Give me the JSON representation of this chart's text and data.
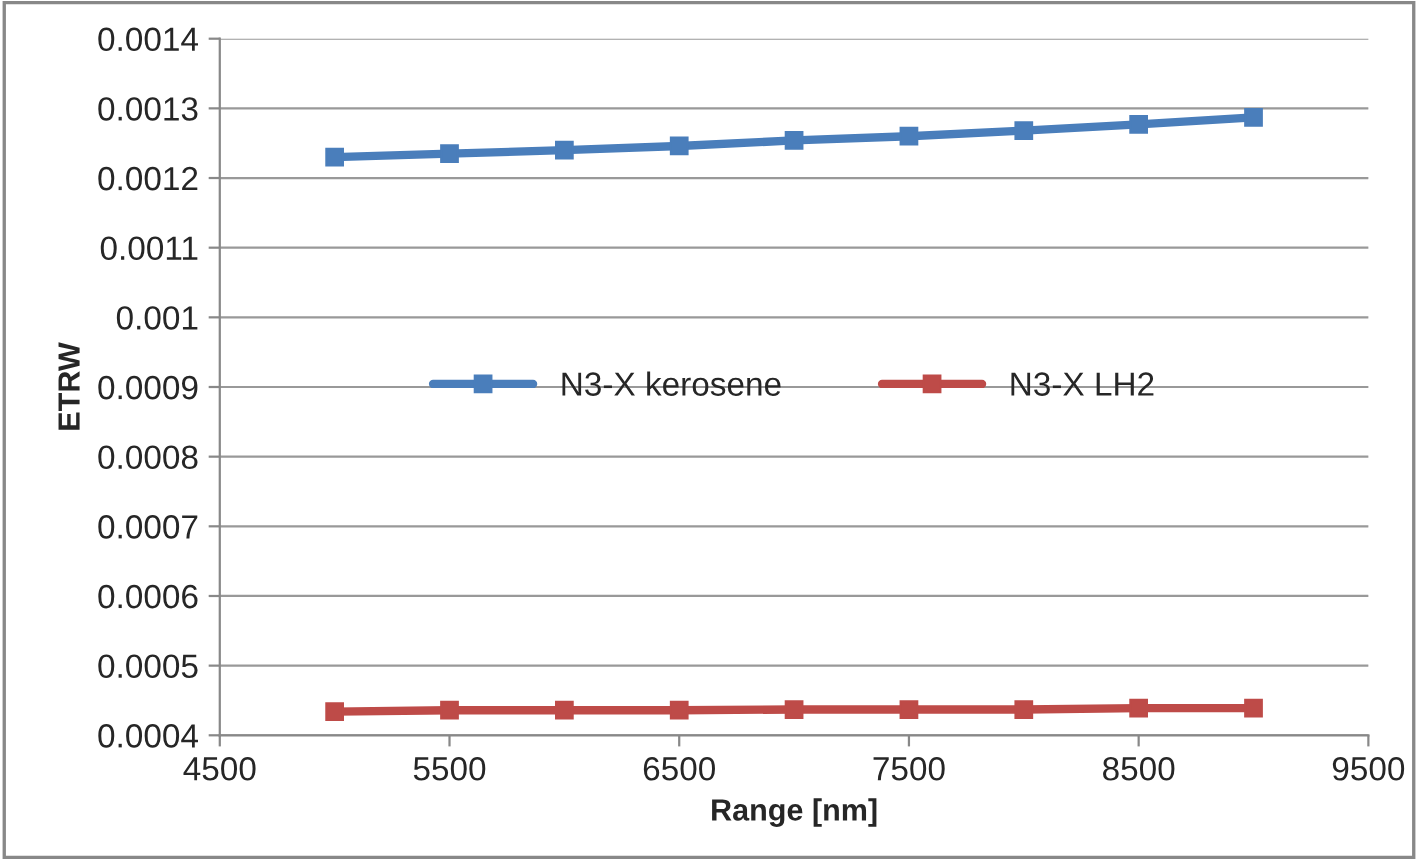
{
  "chart_data": {
    "type": "line",
    "xlabel": "Range [nm]",
    "ylabel": "ETRW",
    "x": [
      5000,
      5500,
      6000,
      6500,
      7000,
      7500,
      8000,
      8500,
      9000
    ],
    "series": [
      {
        "name": "N3-X kerosene",
        "color": "#4a7ebb",
        "values": [
          0.00123,
          0.001235,
          0.00124,
          0.001246,
          0.001254,
          0.00126,
          0.001268,
          0.001277,
          0.001287
        ]
      },
      {
        "name": "N3-X LH2",
        "color": "#be4b48",
        "values": [
          0.000434,
          0.000436,
          0.000436,
          0.000436,
          0.000437,
          0.000437,
          0.000437,
          0.000439,
          0.000439
        ]
      }
    ],
    "xlim": [
      4500,
      9500
    ],
    "xticks": [
      4500,
      5500,
      6500,
      7500,
      8500,
      9500
    ],
    "ylim": [
      0.0004,
      0.0014
    ],
    "yticks": [
      0.0004,
      0.0005,
      0.0006,
      0.0007,
      0.0008,
      0.0009,
      0.001,
      0.0011,
      0.0012,
      0.0013,
      0.0014
    ],
    "grid": "y",
    "legend": "center",
    "marker": "square",
    "line_style": "solid"
  }
}
